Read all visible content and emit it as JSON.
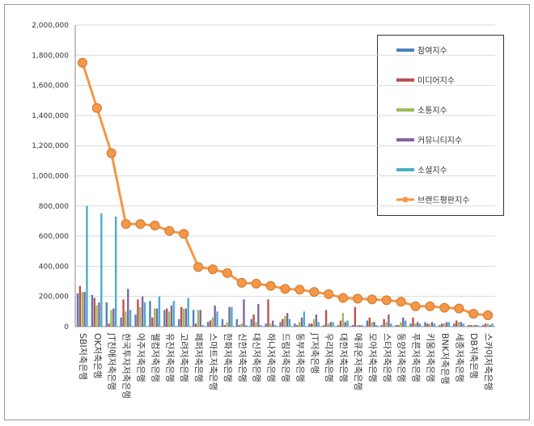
{
  "chart_data": {
    "type": "bar-line",
    "categories": [
      "SBI저축은행",
      "OK저축은행",
      "JT친애저축은행",
      "한국투자저축은행",
      "아주저축은행",
      "웰컴저축은행",
      "유진저축은행",
      "고려저축은행",
      "페퍼저축은행",
      "스마트저축은행",
      "한화저축은행",
      "신한저축은행",
      "대신저축은행",
      "하나저축은행",
      "드림저축은행",
      "동부저축은행",
      "JT저축은행",
      "우리저축은행",
      "대한저축은행",
      "애큐온저축은행",
      "모아저축은행",
      "스타저축은행",
      "동양저축은행",
      "푸른저축은행",
      "키움저축은행",
      "BNK저축은행",
      "세종저축은행",
      "DB저축은행",
      "스카이저축은행"
    ],
    "series": [
      {
        "name": "참여지수",
        "color": "#4f81bd",
        "kind": "bar",
        "values": [
          220000,
          210000,
          160000,
          60000,
          80000,
          170000,
          110000,
          50000,
          110000,
          30000,
          50000,
          50000,
          50000,
          20000,
          30000,
          20000,
          20000,
          10000,
          10000,
          10000,
          40000,
          10000,
          10000,
          20000,
          30000,
          10000,
          20000,
          10000,
          10000
        ]
      },
      {
        "name": "미디어지수",
        "color": "#c0504d",
        "kind": "bar",
        "values": [
          270000,
          190000,
          20000,
          180000,
          180000,
          60000,
          120000,
          130000,
          20000,
          40000,
          10000,
          10000,
          80000,
          180000,
          50000,
          10000,
          20000,
          110000,
          40000,
          130000,
          60000,
          50000,
          10000,
          60000,
          20000,
          20000,
          40000,
          10000,
          20000
        ]
      },
      {
        "name": "소통지수",
        "color": "#9bbb59",
        "kind": "bar",
        "values": [
          230000,
          140000,
          110000,
          100000,
          130000,
          120000,
          100000,
          120000,
          110000,
          60000,
          30000,
          20000,
          30000,
          20000,
          70000,
          30000,
          50000,
          20000,
          90000,
          10000,
          30000,
          30000,
          30000,
          20000,
          20000,
          20000,
          30000,
          10000,
          20000
        ]
      },
      {
        "name": "커뮤니티지수",
        "color": "#8064a2",
        "kind": "bar",
        "values": [
          230000,
          160000,
          120000,
          250000,
          200000,
          120000,
          140000,
          120000,
          110000,
          140000,
          130000,
          180000,
          150000,
          40000,
          90000,
          60000,
          80000,
          30000,
          30000,
          10000,
          30000,
          80000,
          60000,
          30000,
          30000,
          30000,
          30000,
          10000,
          10000
        ]
      },
      {
        "name": "소셜지수",
        "color": "#4bacc6",
        "kind": "bar",
        "values": [
          800000,
          750000,
          730000,
          110000,
          160000,
          200000,
          170000,
          190000,
          10000,
          100000,
          130000,
          10000,
          10000,
          10000,
          50000,
          100000,
          30000,
          30000,
          40000,
          10000,
          10000,
          20000,
          40000,
          20000,
          20000,
          30000,
          20000,
          10000,
          20000
        ]
      },
      {
        "name": "브랜드평판지수",
        "color": "#f79646",
        "kind": "line",
        "values": [
          1750000,
          1450000,
          1150000,
          680000,
          680000,
          670000,
          635000,
          615000,
          395000,
          380000,
          355000,
          290000,
          285000,
          270000,
          250000,
          245000,
          230000,
          215000,
          190000,
          185000,
          180000,
          175000,
          165000,
          135000,
          135000,
          125000,
          120000,
          85000,
          75000
        ]
      }
    ],
    "ylim": [
      0,
      2000000
    ],
    "yticks": [
      0,
      {
        "value": 200000,
        "label": "200,000"
      },
      {
        "value": 400000,
        "label": "400,000"
      },
      {
        "value": 600000,
        "label": "600,000"
      },
      {
        "value": 800000,
        "label": "800,000"
      },
      {
        "value": 1000000,
        "label": "1,000,000"
      },
      {
        "value": 1200000,
        "label": "1,200,000"
      },
      {
        "value": 1400000,
        "label": "1,400,000"
      },
      {
        "value": 1600000,
        "label": "1,600,000"
      },
      {
        "value": 1800000,
        "label": "1,800,000"
      },
      {
        "value": 2000000,
        "label": "2,000,000"
      }
    ],
    "grid": true
  }
}
